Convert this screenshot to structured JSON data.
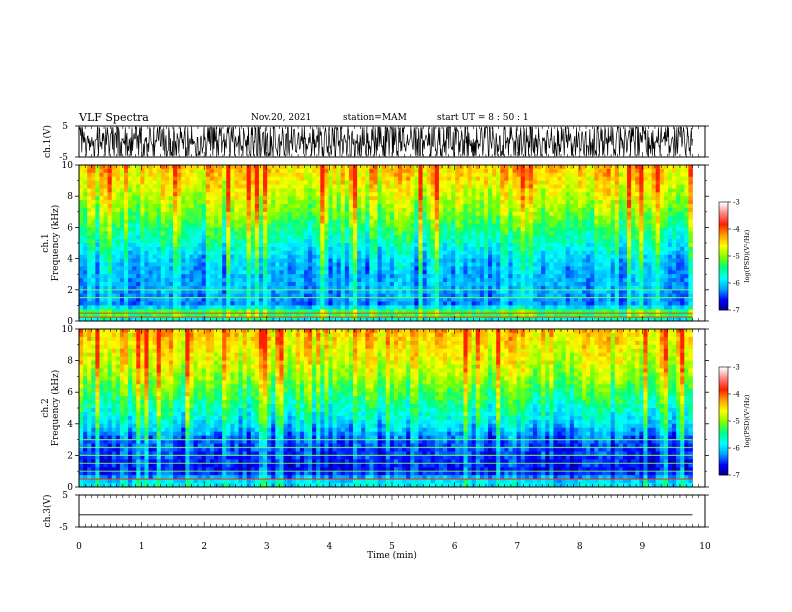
{
  "header": {
    "title": "VLF Spectra",
    "date": "Nov.20, 2021",
    "station": "station=MAM",
    "start": "start  UT =   8 : 50 : 1"
  },
  "chart_data": [
    {
      "type": "line",
      "panel": "ch1-waveform",
      "ylabel": "ch.1(V)",
      "yticks": [
        "5",
        "-5"
      ],
      "ylim": [
        -5,
        5
      ],
      "xlim": [
        0,
        10
      ],
      "description_series": "dense oscillating waveform, saturating between about -5 and 5 V over 0–9.8 min"
    },
    {
      "type": "heatmap",
      "panel": "ch1-spectrogram",
      "ylabel_top": "ch.1",
      "ylabel": "Frequency (kHz)",
      "yticks": [
        "0",
        "2",
        "4",
        "6",
        "8",
        "10"
      ],
      "ylim": [
        0,
        10
      ],
      "xlim": [
        0,
        10
      ],
      "data_xmax": 9.8,
      "colorbar": {
        "label": "log(PSD)(V²/Hz)",
        "ticks": [
          "-3",
          "-4",
          "-5",
          "-6",
          "-7"
        ],
        "range": [
          -7,
          -3
        ]
      },
      "profile_khz_logpsd": [
        [
          0.2,
          -5.4
        ],
        [
          0.5,
          -4.4
        ],
        [
          1.0,
          -6.1
        ],
        [
          2.0,
          -5.9
        ],
        [
          3.0,
          -5.9
        ],
        [
          4.0,
          -5.7
        ],
        [
          5.0,
          -5.3
        ],
        [
          6.0,
          -4.9
        ],
        [
          7.0,
          -4.5
        ],
        [
          8.0,
          -4.2
        ],
        [
          9.0,
          -3.9
        ],
        [
          10.0,
          -3.7
        ]
      ],
      "lines_khz": [
        0.25,
        0.5,
        1.5,
        2.0
      ]
    },
    {
      "type": "heatmap",
      "panel": "ch2-spectrogram",
      "ylabel_top": "ch.2",
      "ylabel": "Frequency (kHz)",
      "yticks": [
        "0",
        "2",
        "4",
        "6",
        "8",
        "10"
      ],
      "ylim": [
        0,
        10
      ],
      "xlim": [
        0,
        10
      ],
      "data_xmax": 9.8,
      "colorbar": {
        "label": "log(PSD)(V²/Hz)",
        "ticks": [
          "-3",
          "-4",
          "-5",
          "-6",
          "-7"
        ],
        "range": [
          -7,
          -3
        ]
      },
      "profile_khz_logpsd": [
        [
          0.2,
          -5.5
        ],
        [
          0.5,
          -5.8
        ],
        [
          1.0,
          -6.5
        ],
        [
          2.0,
          -6.4
        ],
        [
          3.0,
          -6.2
        ],
        [
          4.0,
          -5.6
        ],
        [
          5.0,
          -5.2
        ],
        [
          6.0,
          -4.8
        ],
        [
          7.0,
          -4.4
        ],
        [
          8.0,
          -4.1
        ],
        [
          9.0,
          -3.9
        ],
        [
          10.0,
          -3.7
        ]
      ],
      "lines_khz": [
        0.5,
        1.0,
        1.5,
        2.0,
        2.5,
        3.0
      ]
    },
    {
      "type": "line",
      "panel": "ch3-waveform",
      "ylabel": "ch.3(V)",
      "yticks": [
        "5",
        "-5"
      ],
      "ylim": [
        -5,
        5
      ],
      "xlim": [
        0,
        10
      ],
      "series": [
        {
          "x": [
            0,
            9.8
          ],
          "y": [
            -1.2,
            -1.2
          ]
        }
      ]
    }
  ],
  "xaxis": {
    "label": "Time (min)",
    "ticks": [
      "0",
      "1",
      "2",
      "3",
      "4",
      "5",
      "6",
      "7",
      "8",
      "9",
      "10"
    ]
  },
  "colors": {
    "scale": [
      "#000080",
      "#0000ff",
      "#00a0ff",
      "#00ffff",
      "#00ff80",
      "#80ff00",
      "#ffff00",
      "#ffa000",
      "#ff2000",
      "#ff8080",
      "#ffffff"
    ]
  }
}
